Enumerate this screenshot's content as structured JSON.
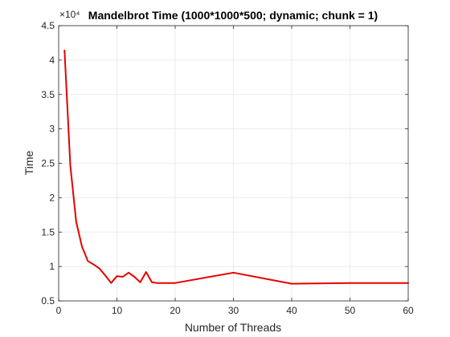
{
  "chart_data": {
    "type": "line",
    "title": "Mandelbrot Time (1000*1000*500; dynamic; chunk = 1)",
    "xlabel": "Number of Threads",
    "ylabel": "Time",
    "y_exponent_label": "×10⁴",
    "xlim": [
      0,
      60
    ],
    "ylim": [
      0.5,
      4.5
    ],
    "x_ticks": [
      0,
      10,
      20,
      30,
      40,
      50,
      60
    ],
    "y_ticks": [
      0.5,
      1,
      1.5,
      2,
      2.5,
      3,
      3.5,
      4,
      4.5
    ],
    "grid": true,
    "colors": {
      "line": "#e60000",
      "axis": "#262626",
      "grid": "#e6e6e6"
    },
    "series": [
      {
        "x": [
          1,
          2,
          3,
          4,
          5,
          6,
          7,
          8,
          9,
          10,
          11,
          12,
          13,
          14,
          15,
          16,
          17,
          18,
          19,
          20,
          30,
          40,
          50,
          60
        ],
        "y": [
          4.14,
          2.47,
          1.65,
          1.29,
          1.08,
          1.03,
          0.97,
          0.87,
          0.76,
          0.86,
          0.85,
          0.91,
          0.85,
          0.77,
          0.92,
          0.77,
          0.76,
          0.76,
          0.76,
          0.76,
          0.91,
          0.75,
          0.76,
          0.76
        ]
      }
    ]
  }
}
